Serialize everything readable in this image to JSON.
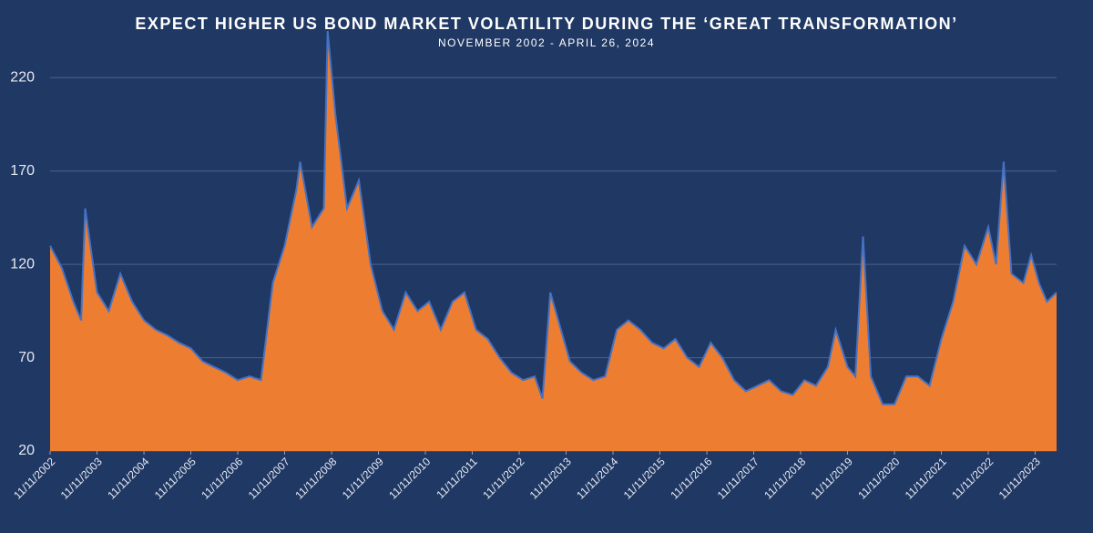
{
  "chart_data": {
    "type": "area",
    "title": "EXPECT HIGHER US BOND MARKET VOLATILITY DURING THE ‘GREAT TRANSFORMATION’",
    "subtitle": "NOVEMBER 2002 - APRIL 26, 2024",
    "color": "#ed7d31",
    "line_color": "#4472c4",
    "grid": true,
    "ylim": [
      20,
      247
    ],
    "yticks": [
      20,
      70,
      120,
      170,
      220
    ],
    "xlim": [
      "11/11/2002",
      "04/26/2024"
    ],
    "xticks": [
      "11/11/2002",
      "11/11/2003",
      "11/11/2004",
      "11/11/2005",
      "11/11/2006",
      "11/11/2007",
      "11/11/2008",
      "11/11/2009",
      "11/11/2010",
      "11/11/2011",
      "11/11/2012",
      "11/11/2013",
      "11/11/2014",
      "11/11/2015",
      "11/11/2016",
      "11/11/2017",
      "11/11/2018",
      "11/11/2019",
      "11/11/2020",
      "11/11/2021",
      "11/11/2022",
      "11/11/2023"
    ],
    "x": [
      "11/11/2002",
      "02/11/2003",
      "05/11/2003",
      "07/11/2003",
      "08/11/2003",
      "11/11/2003",
      "02/11/2004",
      "05/11/2004",
      "08/11/2004",
      "11/11/2004",
      "02/11/2005",
      "05/11/2005",
      "08/11/2005",
      "11/11/2005",
      "02/11/2006",
      "05/11/2006",
      "08/11/2006",
      "11/11/2006",
      "02/11/2007",
      "05/11/2007",
      "08/11/2007",
      "11/11/2007",
      "02/11/2008",
      "03/11/2008",
      "06/11/2008",
      "09/11/2008",
      "10/11/2008",
      "12/11/2008",
      "03/11/2009",
      "06/11/2009",
      "09/11/2009",
      "12/11/2009",
      "03/11/2010",
      "06/11/2010",
      "09/11/2010",
      "12/11/2010",
      "03/11/2011",
      "06/11/2011",
      "09/11/2011",
      "12/11/2011",
      "03/11/2012",
      "06/11/2012",
      "09/11/2012",
      "12/11/2012",
      "03/11/2013",
      "05/11/2013",
      "07/11/2013",
      "09/11/2013",
      "12/11/2013",
      "03/11/2014",
      "06/11/2014",
      "09/11/2014",
      "12/11/2014",
      "03/11/2015",
      "06/11/2015",
      "09/11/2015",
      "12/11/2015",
      "03/11/2016",
      "06/11/2016",
      "09/11/2016",
      "12/11/2016",
      "03/11/2017",
      "06/11/2017",
      "09/11/2017",
      "12/11/2017",
      "03/11/2018",
      "06/11/2018",
      "09/11/2018",
      "12/11/2018",
      "03/11/2019",
      "06/11/2019",
      "08/11/2019",
      "11/11/2019",
      "01/11/2020",
      "03/11/2020",
      "05/11/2020",
      "08/11/2020",
      "11/11/2020",
      "02/11/2021",
      "05/11/2021",
      "08/11/2021",
      "11/11/2021",
      "02/11/2022",
      "05/11/2022",
      "08/11/2022",
      "11/11/2022",
      "01/11/2023",
      "03/11/2023",
      "05/11/2023",
      "08/11/2023",
      "10/11/2023",
      "12/11/2023",
      "02/11/2024",
      "04/26/2024"
    ],
    "values": [
      130,
      118,
      100,
      90,
      150,
      105,
      95,
      115,
      100,
      90,
      85,
      82,
      78,
      75,
      68,
      65,
      62,
      58,
      60,
      58,
      110,
      130,
      160,
      175,
      140,
      150,
      245,
      200,
      150,
      165,
      120,
      95,
      85,
      105,
      95,
      100,
      85,
      100,
      105,
      85,
      80,
      70,
      62,
      58,
      60,
      48,
      105,
      90,
      68,
      62,
      58,
      60,
      85,
      90,
      85,
      78,
      75,
      80,
      70,
      65,
      78,
      70,
      58,
      52,
      55,
      58,
      52,
      50,
      58,
      55,
      65,
      85,
      65,
      60,
      135,
      60,
      45,
      45,
      60,
      60,
      55,
      80,
      100,
      130,
      120,
      140,
      120,
      175,
      115,
      110,
      125,
      110,
      100,
      105
    ]
  }
}
